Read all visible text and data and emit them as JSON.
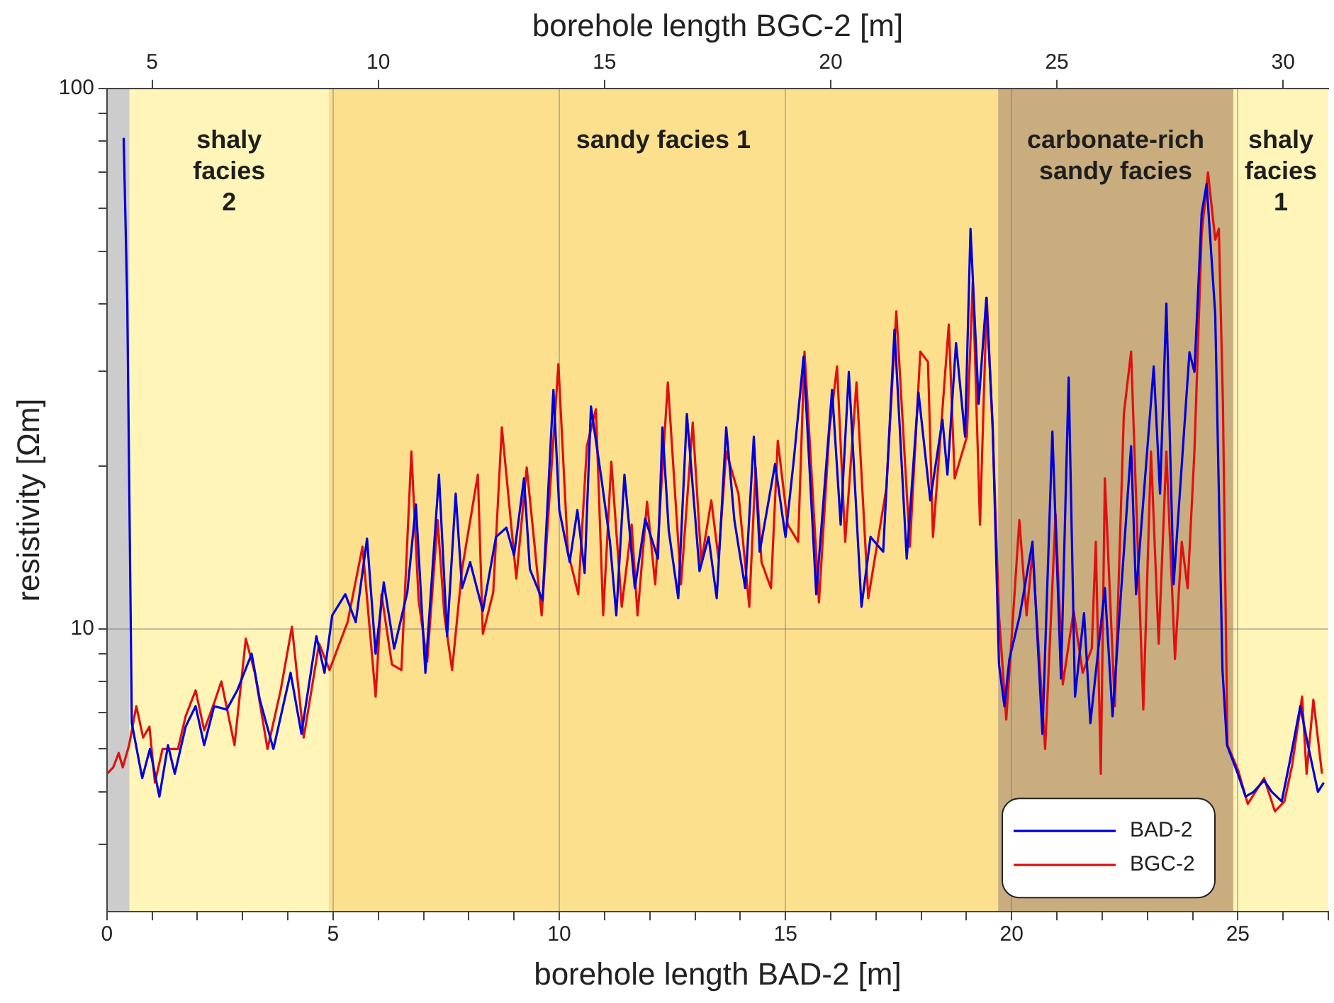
{
  "chart_data": {
    "type": "line",
    "xlabel": "borehole length BAD-2 [m]",
    "x2label": "borehole length BGC-2 [m]",
    "ylabel": "resistivity [Ωm]",
    "log": "y",
    "xlim": [
      0,
      27
    ],
    "x2lim": [
      4,
      31
    ],
    "ylim": [
      3,
      100
    ],
    "xticks": [
      0,
      {
        "value": 1,
        "label": null
      },
      {
        "value": 2,
        "label": null
      },
      {
        "value": 3,
        "label": null
      },
      {
        "value": 4,
        "label": null
      },
      5,
      {
        "value": 6,
        "label": null
      },
      {
        "value": 7,
        "label": null
      },
      {
        "value": 8,
        "label": null
      },
      {
        "value": 9,
        "label": null
      },
      10,
      {
        "value": 11,
        "label": null
      },
      {
        "value": 12,
        "label": null
      },
      {
        "value": 13,
        "label": null
      },
      {
        "value": 14,
        "label": null
      },
      15,
      {
        "value": 16,
        "label": null
      },
      {
        "value": 17,
        "label": null
      },
      {
        "value": 18,
        "label": null
      },
      {
        "value": 19,
        "label": null
      },
      20,
      {
        "value": 21,
        "label": null
      },
      {
        "value": 22,
        "label": null
      },
      {
        "value": 23,
        "label": null
      },
      {
        "value": 24,
        "label": null
      },
      25,
      {
        "value": 26,
        "label": null
      },
      {
        "value": 27,
        "label": null
      }
    ],
    "x2ticks": [
      5,
      10,
      15,
      20,
      25,
      30
    ],
    "yticks": [
      {
        "value": 4,
        "label": null
      },
      {
        "value": 5,
        "label": null
      },
      {
        "value": 6,
        "label": null
      },
      {
        "value": 7,
        "label": null
      },
      {
        "value": 8,
        "label": null
      },
      {
        "value": 9,
        "label": null
      },
      10,
      {
        "value": 20,
        "label": null
      },
      {
        "value": 30,
        "label": null
      },
      {
        "value": 40,
        "label": null
      },
      {
        "value": 50,
        "label": null
      },
      {
        "value": 60,
        "label": null
      },
      {
        "value": 70,
        "label": null
      },
      {
        "value": 80,
        "label": null
      },
      {
        "value": 90,
        "label": null
      },
      100
    ],
    "grid": true,
    "legend": "bottom right",
    "marker": "none",
    "line_style": "solid",
    "bands": [
      {
        "axis": "x",
        "from": 0,
        "to": 0.5,
        "color": "#cccccc"
      },
      {
        "axis": "x",
        "from": 0.5,
        "to": 4.9,
        "label": "shaly\nfacies\n2",
        "color": "#fff5b8"
      },
      {
        "axis": "x",
        "from": 4.9,
        "to": 19.7,
        "label": "sandy facies 1",
        "color": "#fde08e"
      },
      {
        "axis": "x",
        "from": 19.7,
        "to": 24.9,
        "label": "carbonate-rich\nsandy facies",
        "color": "#c9ad7e"
      },
      {
        "axis": "x",
        "from": 24.9,
        "to": 27,
        "label": "shaly\nfacies\n1",
        "color": "#fff5b8"
      }
    ],
    "series": [
      {
        "name": "BAD-2",
        "color": "#0000dd",
        "x": [
          0.37,
          0.45,
          0.55,
          0.78,
          0.95,
          1.16,
          1.35,
          1.5,
          1.74,
          1.96,
          2.15,
          2.37,
          2.65,
          2.88,
          3.2,
          3.38,
          3.68,
          4.06,
          4.3,
          4.63,
          4.81,
          4.98,
          5.27,
          5.5,
          5.75,
          5.94,
          6.12,
          6.35,
          6.64,
          6.83,
          7.04,
          7.34,
          7.52,
          7.71,
          7.85,
          8.03,
          8.31,
          8.6,
          8.83,
          9.0,
          9.22,
          9.35,
          9.63,
          9.87,
          10.0,
          10.23,
          10.4,
          10.56,
          10.7,
          10.93,
          11.12,
          11.26,
          11.44,
          11.67,
          11.9,
          12.18,
          12.28,
          12.42,
          12.63,
          12.82,
          13.1,
          13.3,
          13.48,
          13.69,
          13.87,
          14.11,
          14.3,
          14.43,
          14.77,
          15.0,
          15.19,
          15.4,
          15.68,
          16.03,
          16.22,
          16.4,
          16.68,
          16.88,
          17.16,
          17.41,
          17.68,
          17.94,
          18.2,
          18.47,
          18.58,
          18.77,
          18.97,
          19.09,
          19.27,
          19.44,
          19.58,
          19.72,
          19.84,
          19.95,
          20.18,
          20.46,
          20.68,
          20.9,
          21.09,
          21.26,
          21.4,
          21.6,
          21.74,
          22.06,
          22.23,
          22.64,
          22.75,
          23.14,
          23.28,
          23.42,
          23.58,
          23.93,
          24.04,
          24.2,
          24.31,
          24.5,
          24.66,
          24.76,
          25.0,
          25.17,
          25.35,
          25.58,
          25.75,
          25.97,
          26.15,
          26.38,
          26.55,
          26.77,
          26.9
        ],
        "values": [
          81,
          40,
          6.7,
          5.3,
          6.0,
          4.9,
          6.1,
          5.4,
          6.6,
          7.2,
          6.1,
          7.2,
          7.1,
          7.7,
          9.0,
          7.4,
          6.0,
          8.3,
          6.4,
          9.7,
          8.3,
          10.6,
          11.6,
          10.3,
          14.7,
          9.0,
          12.2,
          9.2,
          11.7,
          17,
          8.3,
          19.3,
          9.7,
          17.8,
          11.9,
          13.3,
          10.8,
          14.8,
          15.4,
          13.7,
          19,
          12.9,
          11.3,
          27.7,
          16.6,
          13.3,
          16.6,
          12.7,
          25.8,
          19,
          14.5,
          10.6,
          19.3,
          11.9,
          16,
          13.5,
          23.6,
          15.2,
          11.4,
          25,
          12.8,
          14.8,
          11.4,
          23.6,
          15.9,
          11.9,
          22.7,
          13.9,
          20.2,
          14.8,
          20.8,
          31.9,
          11.6,
          27.7,
          15.6,
          29.9,
          11.0,
          14.8,
          13.9,
          35.8,
          13.5,
          27.4,
          17.3,
          24.4,
          19.3,
          33.8,
          22.7,
          55,
          26.1,
          41,
          23.8,
          8.6,
          7.2,
          8.8,
          10.6,
          14.5,
          6.4,
          23.2,
          8.1,
          29.2,
          7.5,
          10.7,
          6.7,
          11.9,
          6.9,
          21.8,
          11.6,
          30.6,
          17.8,
          40,
          12.1,
          32.5,
          29.9,
          58.7,
          66.6,
          38.2,
          8.4,
          6.1,
          5.4,
          4.9,
          5.0,
          5.25,
          5.0,
          4.8,
          5.7,
          7.2,
          6.1,
          5.0,
          5.2
        ]
      },
      {
        "name": "BGC-2",
        "color": "#e01010",
        "x": [
          0.0,
          0.14,
          0.26,
          0.35,
          0.49,
          0.65,
          0.8,
          0.94,
          1.06,
          1.23,
          1.4,
          1.57,
          1.74,
          1.96,
          2.15,
          2.37,
          2.53,
          2.82,
          3.07,
          3.27,
          3.55,
          3.84,
          4.09,
          4.35,
          4.69,
          4.92,
          5.32,
          5.65,
          5.94,
          6.07,
          6.3,
          6.51,
          6.73,
          6.89,
          7.08,
          7.31,
          7.46,
          7.63,
          7.85,
          8.2,
          8.31,
          8.54,
          8.73,
          9.05,
          9.28,
          9.61,
          9.98,
          10.19,
          10.42,
          10.61,
          10.81,
          10.97,
          11.15,
          11.38,
          11.6,
          11.73,
          11.94,
          12.12,
          12.4,
          12.69,
          12.95,
          13.14,
          13.36,
          13.52,
          13.69,
          13.96,
          14.2,
          14.34,
          14.47,
          14.68,
          14.83,
          15.05,
          15.28,
          15.42,
          15.57,
          15.74,
          15.97,
          16.14,
          16.32,
          16.57,
          16.83,
          17.23,
          17.45,
          17.75,
          17.98,
          18.15,
          18.26,
          18.61,
          18.74,
          19.01,
          19.14,
          19.3,
          19.45,
          19.58,
          19.72,
          19.88,
          20.17,
          20.33,
          20.46,
          20.74,
          20.97,
          21.13,
          21.37,
          21.57,
          21.77,
          21.86,
          21.97,
          22.06,
          22.28,
          22.48,
          22.64,
          22.91,
          23.08,
          23.25,
          23.42,
          23.61,
          23.76,
          23.89,
          24.04,
          24.2,
          24.34,
          24.5,
          24.58,
          24.67,
          24.77,
          25.0,
          25.22,
          25.58,
          25.82,
          26.03,
          26.2,
          26.42,
          26.52,
          26.67,
          26.86
        ],
        "values": [
          5.4,
          5.55,
          5.9,
          5.55,
          6.1,
          7.2,
          6.3,
          6.6,
          5.2,
          6.0,
          6.0,
          6.0,
          6.9,
          7.7,
          6.5,
          7.3,
          8.0,
          6.1,
          9.6,
          8.3,
          6.0,
          7.7,
          10.1,
          6.3,
          9.4,
          8.4,
          10.3,
          14.2,
          7.5,
          11.6,
          8.6,
          8.4,
          21.3,
          11.3,
          8.7,
          15.9,
          10.6,
          8.4,
          12.9,
          19.3,
          9.8,
          11.7,
          23.6,
          12.4,
          19.9,
          10.6,
          30.9,
          13.9,
          11.6,
          21.8,
          25.5,
          10.6,
          20.4,
          11.0,
          15.6,
          10.6,
          17.2,
          12.1,
          28.6,
          12.1,
          24.1,
          13.3,
          17.3,
          13.5,
          21.3,
          17.8,
          11.0,
          19.9,
          13.3,
          11.9,
          22.3,
          15.6,
          14.5,
          32.6,
          19.9,
          11.2,
          23.3,
          30.6,
          14.5,
          28.6,
          11.4,
          18.2,
          38.7,
          14.2,
          32.6,
          31.2,
          14.8,
          36.6,
          19.0,
          22.7,
          43.9,
          15.6,
          41,
          23.3,
          10.6,
          6.8,
          15.9,
          10.6,
          13.9,
          6.0,
          16.3,
          7.9,
          10.8,
          8.3,
          9.2,
          14.5,
          5.4,
          19.0,
          7.2,
          25.0,
          32.6,
          7.1,
          21.3,
          9.4,
          21.3,
          8.8,
          14.5,
          11.9,
          21.3,
          53.8,
          69.9,
          52.5,
          55.0,
          26.1,
          6.1,
          5.5,
          4.75,
          5.3,
          4.6,
          4.8,
          5.6,
          7.5,
          5.4,
          7.4,
          5.4
        ]
      }
    ]
  }
}
